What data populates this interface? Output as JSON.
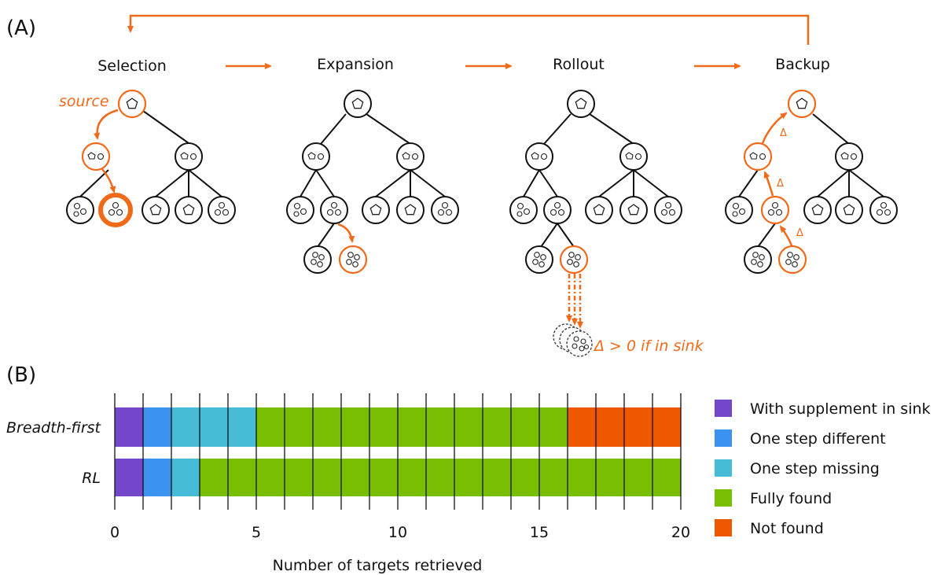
{
  "panel_a": {
    "label": "(A)",
    "stages": [
      {
        "title": "Selection"
      },
      {
        "title": "Expansion"
      },
      {
        "title": "Rollout"
      },
      {
        "title": "Backup"
      }
    ],
    "annotations": {
      "source": "source",
      "delta_symbol": "Δ",
      "sink_text": "Δ > 0 if in sink"
    }
  },
  "panel_b": {
    "label": "(B)",
    "colors": {
      "with_supplement": "#7446c9",
      "one_step_different": "#3b93ef",
      "one_step_missing": "#47bcd6",
      "fully_found": "#77bf00",
      "not_found": "#ee5800"
    }
  },
  "chart_data": {
    "type": "bar",
    "orientation": "horizontal",
    "stacked": true,
    "categories": [
      "Breadth-first",
      "RL"
    ],
    "series": [
      {
        "name": "With supplement in sink",
        "values": [
          1,
          1
        ]
      },
      {
        "name": "One step different",
        "values": [
          1,
          1
        ]
      },
      {
        "name": "One step missing",
        "values": [
          3,
          1
        ]
      },
      {
        "name": "Fully found",
        "values": [
          11,
          17
        ]
      },
      {
        "name": "Not found",
        "values": [
          4,
          0
        ]
      }
    ],
    "xlabel": "Number of targets retrieved",
    "xlim": [
      0,
      20
    ],
    "xticks": [
      "0",
      "5",
      "10",
      "15",
      "20"
    ],
    "grid": true,
    "legend": "right"
  }
}
